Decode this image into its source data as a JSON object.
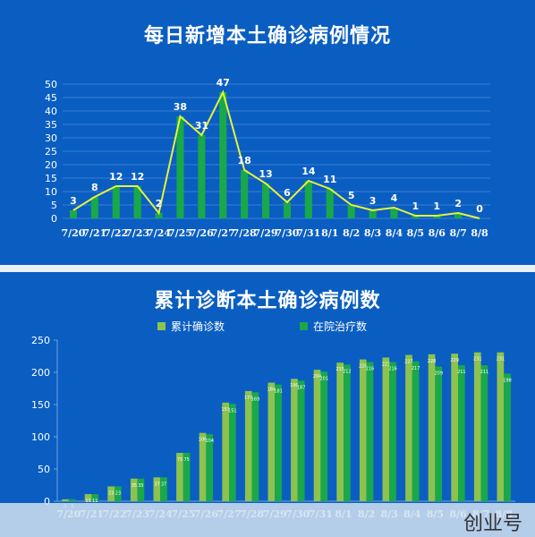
{
  "colors": {
    "background": "#0a5ec2",
    "bar_daily": "#19a84a",
    "line_daily": "#e6f23a",
    "bar_cumulative": "#8dc24e",
    "bar_hospital": "#19a84a",
    "axis_text": "#ffffff",
    "grid": "#3a7fd2"
  },
  "chart_data": [
    {
      "type": "bar",
      "title": "每日新增本土确诊病例情况",
      "categories": [
        "7/20",
        "7/21",
        "7/22",
        "7/23",
        "7/24",
        "7/25",
        "7/26",
        "7/27",
        "7/28",
        "7/29",
        "7/30",
        "7/31",
        "8/1",
        "8/2",
        "8/3",
        "8/4",
        "8/5",
        "8/6",
        "8/7",
        "8/8"
      ],
      "series": [
        {
          "values": [
            3,
            8,
            12,
            12,
            2,
            38,
            31,
            47,
            18,
            13,
            6,
            14,
            11,
            5,
            3,
            4,
            1,
            1,
            2,
            0
          ]
        }
      ],
      "overlay_line": true,
      "ylim": [
        0,
        50
      ],
      "yticks": [
        0,
        5,
        10,
        15,
        20,
        25,
        30,
        35,
        40,
        45,
        50
      ],
      "grid": true,
      "data_labels": true
    },
    {
      "type": "bar",
      "title": "累计诊断本土确诊病例数",
      "categories": [
        "7/20",
        "7/21",
        "7/22",
        "7/23",
        "7/24",
        "7/25",
        "7/26",
        "7/27",
        "7/28",
        "7/29",
        "7/30",
        "7/31",
        "8/1",
        "8/2",
        "8/3",
        "8/4",
        "8/5",
        "8/6",
        "8/7",
        "8/8"
      ],
      "series": [
        {
          "name": "累计确诊数",
          "values": [
            3,
            11,
            23,
            35,
            37,
            75,
            106,
            153,
            171,
            184,
            190,
            204,
            215,
            220,
            223,
            227,
            228,
            229,
            231,
            231
          ]
        },
        {
          "name": "在院治疗数",
          "values": [
            3,
            11,
            23,
            35,
            37,
            75,
            104,
            151,
            169,
            181,
            187,
            201,
            212,
            216,
            216,
            217,
            209,
            211,
            211,
            198
          ]
        }
      ],
      "ylim": [
        0,
        250
      ],
      "yticks": [
        0,
        50,
        100,
        150,
        200,
        250
      ],
      "legend_position": "top-center",
      "grid": false,
      "data_labels": true
    }
  ],
  "watermark": {
    "text": "创业号"
  }
}
